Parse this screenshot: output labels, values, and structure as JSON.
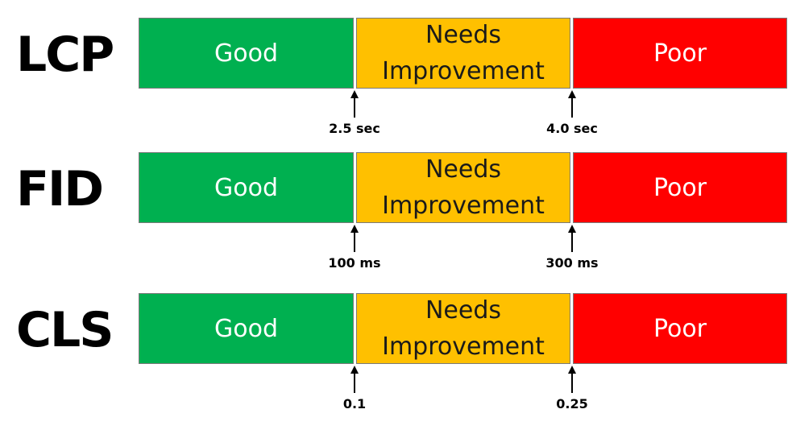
{
  "colors": {
    "good": "#00b050",
    "needs_improvement": "#ffc000",
    "poor": "#ff0000"
  },
  "metrics": [
    {
      "name": "LCP",
      "segments": {
        "good": "Good",
        "mid_line1": "Needs",
        "mid_line2": "Improvement",
        "poor": "Poor"
      },
      "thresholds": [
        "2.5 sec",
        "4.0 sec"
      ]
    },
    {
      "name": "FID",
      "segments": {
        "good": "Good",
        "mid_line1": "Needs",
        "mid_line2": "Improvement",
        "poor": "Poor"
      },
      "thresholds": [
        "100 ms",
        "300 ms"
      ]
    },
    {
      "name": "CLS",
      "segments": {
        "good": "Good",
        "mid_line1": "Needs",
        "mid_line2": "Improvement",
        "poor": "Poor"
      },
      "thresholds": [
        "0.1",
        "0.25"
      ]
    }
  ]
}
